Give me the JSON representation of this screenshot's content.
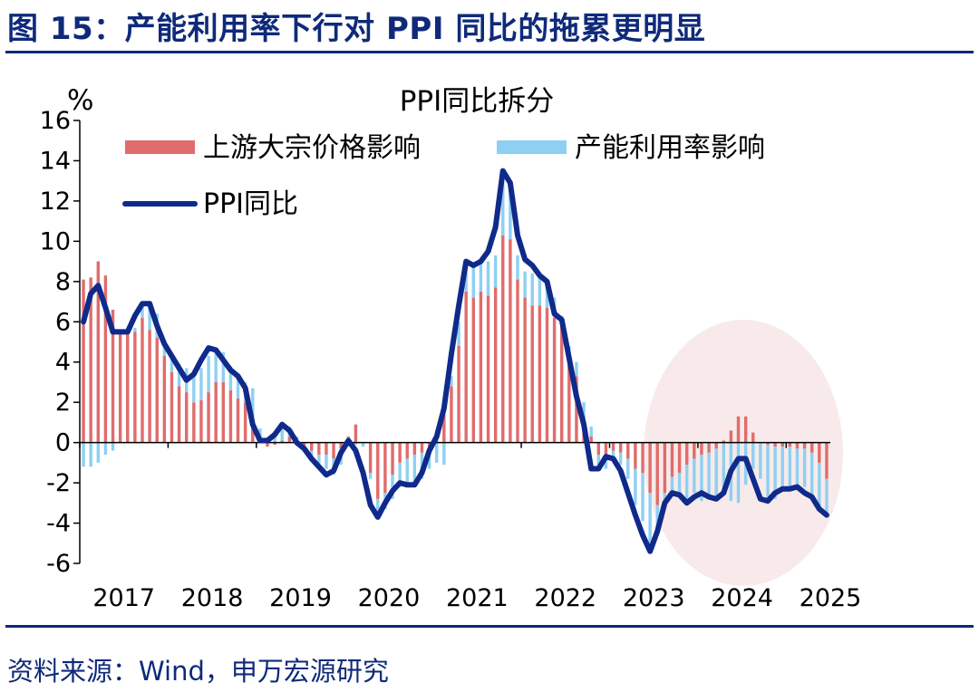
{
  "figure": {
    "title": "图 15：产能利用率下行对 PPI 同比的拖累更明显",
    "source": "资料来源：Wind，申万宏源研究"
  },
  "chart_data": {
    "type": "bar",
    "title": "PPI同比拆分",
    "ylabel": "%",
    "ylim": [
      -6,
      16
    ],
    "yticks": [
      -6,
      -4,
      -2,
      0,
      2,
      4,
      6,
      8,
      10,
      12,
      14,
      16
    ],
    "x_tick_labels": [
      "2017",
      "2018",
      "2019",
      "2020",
      "2021",
      "2022",
      "2023",
      "2024",
      "2025"
    ],
    "x": [
      "2017-01",
      "2017-02",
      "2017-03",
      "2017-04",
      "2017-05",
      "2017-06",
      "2017-07",
      "2017-08",
      "2017-09",
      "2017-10",
      "2017-11",
      "2017-12",
      "2018-01",
      "2018-02",
      "2018-03",
      "2018-04",
      "2018-05",
      "2018-06",
      "2018-07",
      "2018-08",
      "2018-09",
      "2018-10",
      "2018-11",
      "2018-12",
      "2019-01",
      "2019-02",
      "2019-03",
      "2019-04",
      "2019-05",
      "2019-06",
      "2019-07",
      "2019-08",
      "2019-09",
      "2019-10",
      "2019-11",
      "2019-12",
      "2020-01",
      "2020-02",
      "2020-03",
      "2020-04",
      "2020-05",
      "2020-06",
      "2020-07",
      "2020-08",
      "2020-09",
      "2020-10",
      "2020-11",
      "2020-12",
      "2021-01",
      "2021-02",
      "2021-03",
      "2021-04",
      "2021-05",
      "2021-06",
      "2021-07",
      "2021-08",
      "2021-09",
      "2021-10",
      "2021-11",
      "2021-12",
      "2022-01",
      "2022-02",
      "2022-03",
      "2022-04",
      "2022-05",
      "2022-06",
      "2022-07",
      "2022-08",
      "2022-09",
      "2022-10",
      "2022-11",
      "2022-12",
      "2023-01",
      "2023-02",
      "2023-03",
      "2023-04",
      "2023-05",
      "2023-06",
      "2023-07",
      "2023-08",
      "2023-09",
      "2023-10",
      "2023-11",
      "2023-12",
      "2024-01",
      "2024-02",
      "2024-03",
      "2024-04",
      "2024-05",
      "2024-06",
      "2024-07",
      "2024-08",
      "2024-09",
      "2024-10",
      "2024-11",
      "2024-12",
      "2025-01",
      "2025-02",
      "2025-03",
      "2025-04",
      "2025-05",
      "2025-06"
    ],
    "series": [
      {
        "name": "上游大宗价格影响",
        "kind": "bar",
        "color": "#e06c6c",
        "values": [
          8.1,
          8.2,
          9.0,
          8.3,
          6.6,
          5.4,
          5.4,
          5.5,
          6.2,
          5.6,
          5.2,
          4.3,
          3.5,
          2.8,
          2.5,
          2.0,
          2.1,
          2.5,
          3.0,
          3.0,
          2.6,
          2.2,
          2.0,
          1.2,
          0.2,
          -0.2,
          -0.1,
          0.1,
          0.3,
          0.1,
          -0.2,
          -0.4,
          -0.6,
          -0.6,
          -0.8,
          -0.3,
          0.3,
          0.9,
          0.0,
          -1.5,
          -2.8,
          -2.5,
          -1.6,
          -1.0,
          -0.8,
          -0.6,
          -0.5,
          -0.3,
          0.6,
          1.4,
          2.8,
          4.8,
          7.5,
          7.2,
          7.5,
          7.3,
          7.7,
          10.3,
          10.1,
          8.1,
          7.2,
          6.8,
          6.8,
          6.7,
          6.2,
          5.8,
          4.2,
          3.3,
          1.3,
          0.3,
          -0.6,
          -0.8,
          -0.4,
          -0.5,
          -0.8,
          -1.3,
          -1.5,
          -2.5,
          -3.1,
          -2.5,
          -1.7,
          -1.5,
          -1.1,
          -0.8,
          -0.6,
          -0.5,
          -0.3,
          0.1,
          0.6,
          1.3,
          1.3,
          0.5,
          0.0,
          -0.1,
          -0.2,
          -0.2,
          -0.2,
          -0.3,
          -0.3,
          -0.5,
          -1.0,
          -1.8
        ]
      },
      {
        "name": "产能利用率影响",
        "kind": "bar",
        "color": "#8ed0f2",
        "values": [
          -1.2,
          -1.2,
          -1.0,
          -0.6,
          -0.4,
          0.0,
          0.1,
          0.2,
          0.8,
          1.4,
          1.2,
          0.6,
          0.9,
          1.1,
          1.2,
          1.3,
          1.6,
          1.8,
          1.6,
          1.5,
          1.2,
          1.2,
          1.0,
          1.5,
          0.5,
          0.2,
          0.5,
          0.7,
          0.5,
          0.2,
          -0.2,
          -0.4,
          -0.5,
          -0.7,
          -0.8,
          -0.8,
          -0.2,
          -0.1,
          -0.2,
          -0.3,
          -0.8,
          -0.8,
          -1.2,
          -1.2,
          -1.3,
          -1.5,
          -1.3,
          -1.0,
          -1.0,
          -1.1,
          0.5,
          1.2,
          1.5,
          1.6,
          1.6,
          1.7,
          1.6,
          3.2,
          2.8,
          1.2,
          1.3,
          1.6,
          1.5,
          1.4,
          1.0,
          0.5,
          0.6,
          0.7,
          0.7,
          0.5,
          -0.7,
          -0.5,
          -0.3,
          -0.6,
          -1.0,
          -1.8,
          -2.4,
          -2.9,
          -1.3,
          -0.6,
          -0.8,
          -1.1,
          -1.9,
          -1.7,
          -2.3,
          -2.2,
          -2.4,
          -2.6,
          -2.9,
          -3.0,
          -2.1,
          -1.3,
          -1.8,
          -2.8,
          -2.6,
          -2.1,
          -2.1,
          -1.9,
          -1.9,
          -2.2,
          -2.3,
          -1.8
        ]
      },
      {
        "name": "PPI同比",
        "kind": "line",
        "color": "#0f2a8a",
        "values": [
          6.0,
          7.4,
          7.8,
          6.7,
          5.5,
          5.5,
          5.5,
          6.3,
          6.9,
          6.9,
          5.8,
          4.9,
          4.3,
          3.7,
          3.1,
          3.4,
          4.1,
          4.7,
          4.6,
          4.1,
          3.6,
          3.3,
          2.7,
          0.9,
          0.1,
          0.1,
          0.4,
          0.9,
          0.6,
          0.0,
          -0.3,
          -0.8,
          -1.2,
          -1.6,
          -1.4,
          -0.5,
          0.1,
          -0.4,
          -1.5,
          -3.1,
          -3.7,
          -3.0,
          -2.4,
          -2.0,
          -2.1,
          -2.1,
          -1.5,
          -0.4,
          0.3,
          1.7,
          4.4,
          6.8,
          9.0,
          8.8,
          9.0,
          9.5,
          10.7,
          13.5,
          12.9,
          10.3,
          9.1,
          8.8,
          8.3,
          8.0,
          6.4,
          6.1,
          4.2,
          2.3,
          0.9,
          -1.3,
          -1.3,
          -0.7,
          -0.8,
          -1.4,
          -2.5,
          -3.6,
          -4.6,
          -5.4,
          -4.4,
          -3.0,
          -2.5,
          -2.6,
          -3.0,
          -2.7,
          -2.5,
          -2.7,
          -2.8,
          -2.5,
          -1.4,
          -0.8,
          -0.8,
          -1.8,
          -2.8,
          -2.9,
          -2.5,
          -2.3,
          -2.3,
          -2.2,
          -2.5,
          -2.7,
          -3.3,
          -3.6
        ]
      }
    ],
    "legend": "top, inside plot",
    "annotation": "shaded ellipse highlighting 2024-2025"
  }
}
